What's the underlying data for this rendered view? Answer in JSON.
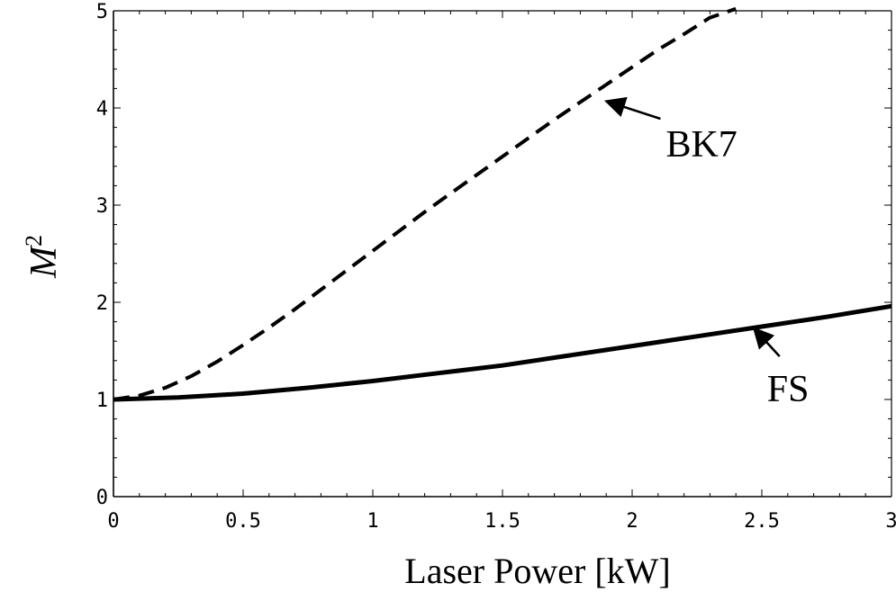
{
  "chart_data": {
    "type": "line",
    "xlabel": "Laser Power [kW]",
    "ylabel": {
      "base": "M",
      "sup": "2"
    },
    "xlim": [
      0,
      3
    ],
    "ylim": [
      0,
      5
    ],
    "x_ticks": [
      {
        "value": 0,
        "label": "0"
      },
      {
        "value": 0.5,
        "label": "0.5"
      },
      {
        "value": 1,
        "label": "1"
      },
      {
        "value": 1.5,
        "label": "1.5"
      },
      {
        "value": 2,
        "label": "2"
      },
      {
        "value": 2.5,
        "label": "2.5"
      },
      {
        "value": 3,
        "label": "3"
      }
    ],
    "y_ticks": [
      {
        "value": 0,
        "label": "0"
      },
      {
        "value": 1,
        "label": "1"
      },
      {
        "value": 2,
        "label": "2"
      },
      {
        "value": 3,
        "label": "3"
      },
      {
        "value": 4,
        "label": "4"
      },
      {
        "value": 5,
        "label": "5"
      }
    ],
    "grid": false,
    "series": [
      {
        "name": "BK7",
        "style": "dashed",
        "x": [
          0,
          0.1,
          0.2,
          0.3,
          0.4,
          0.5,
          0.6,
          0.7,
          0.8,
          0.9,
          1.0,
          1.1,
          1.2,
          1.3,
          1.4,
          1.5,
          1.6,
          1.7,
          1.8,
          1.9,
          2.0,
          2.1,
          2.2,
          2.3,
          2.4
        ],
        "y": [
          1.0,
          1.04,
          1.12,
          1.24,
          1.39,
          1.56,
          1.74,
          1.93,
          2.13,
          2.33,
          2.53,
          2.73,
          2.93,
          3.12,
          3.31,
          3.5,
          3.69,
          3.88,
          4.06,
          4.24,
          4.42,
          4.6,
          4.76,
          4.93,
          5.02
        ]
      },
      {
        "name": "FS",
        "style": "solid",
        "x": [
          0,
          0.25,
          0.5,
          0.75,
          1.0,
          1.25,
          1.5,
          1.75,
          2.0,
          2.25,
          2.5,
          2.75,
          3.0
        ],
        "y": [
          1.0,
          1.02,
          1.06,
          1.12,
          1.19,
          1.27,
          1.35,
          1.45,
          1.55,
          1.65,
          1.75,
          1.85,
          1.96
        ]
      }
    ],
    "annotations": [
      {
        "text": "BK7",
        "series": "BK7",
        "arrow_to": {
          "x": 1.9,
          "y": 4.07
        },
        "text_at": {
          "x": 2.13,
          "y": 3.5
        }
      },
      {
        "text": "FS",
        "series": "FS",
        "arrow_to": {
          "x": 2.47,
          "y": 1.73
        },
        "text_at": {
          "x": 2.52,
          "y": 0.98
        }
      }
    ],
    "colors": {
      "line": "#000000",
      "axis": "#000000"
    }
  }
}
